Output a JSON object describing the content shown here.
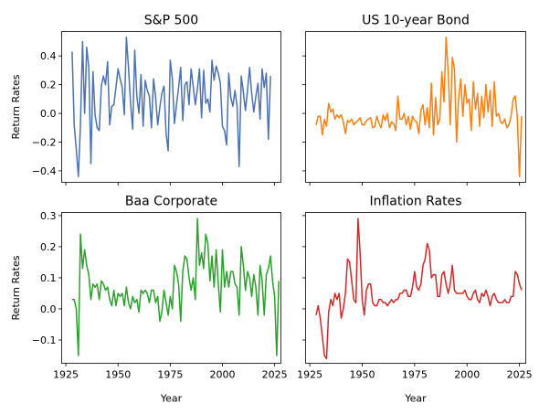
{
  "figure": {
    "x_ticks": [
      "1925",
      "1950",
      "1975",
      "2000",
      "2025"
    ]
  },
  "chart_data": [
    {
      "type": "line",
      "title": "S&P 500",
      "xlabel": "",
      "ylabel": "Return Rates",
      "color": "#4c72b0",
      "xlim": [
        1923,
        2028
      ],
      "ylim": [
        -0.48,
        0.57
      ],
      "yticks": [
        -0.4,
        -0.2,
        0.0,
        0.2,
        0.4
      ],
      "ytick_labels": [
        "−0.4",
        "−0.2",
        "0.0",
        "0.2",
        "0.4"
      ],
      "show_xtick_labels": false,
      "show_ytick_labels": true,
      "x_start": 1928,
      "values": [
        0.43,
        -0.08,
        -0.25,
        -0.44,
        -0.08,
        0.5,
        0.0,
        0.46,
        0.32,
        -0.35,
        0.29,
        -0.01,
        -0.1,
        -0.12,
        0.19,
        0.26,
        0.2,
        0.36,
        -0.08,
        0.05,
        0.06,
        0.18,
        0.31,
        0.24,
        0.18,
        -0.01,
        0.53,
        0.32,
        0.07,
        -0.11,
        0.44,
        0.12,
        0.0,
        0.27,
        -0.09,
        0.23,
        0.16,
        0.12,
        -0.1,
        0.24,
        0.11,
        -0.08,
        0.04,
        0.14,
        0.19,
        -0.14,
        -0.26,
        0.37,
        0.24,
        -0.07,
        0.06,
        0.18,
        0.32,
        -0.05,
        0.2,
        0.22,
        0.06,
        0.31,
        0.19,
        0.06,
        0.17,
        0.31,
        -0.03,
        0.3,
        0.07,
        0.1,
        0.01,
        0.37,
        0.23,
        0.33,
        0.28,
        0.21,
        -0.09,
        -0.12,
        -0.22,
        0.28,
        0.11,
        0.05,
        0.16,
        0.05,
        -0.37,
        0.26,
        0.15,
        0.02,
        0.16,
        0.32,
        0.14,
        0.01,
        0.12,
        0.21,
        -0.04,
        0.31,
        0.18,
        0.28,
        -0.18,
        0.26
      ]
    },
    {
      "type": "line",
      "title": "US 10-year Bond",
      "xlabel": "",
      "ylabel": "",
      "color": "#ff7f0e",
      "xlim": [
        1923,
        2028
      ],
      "ylim": [
        -0.48,
        0.57
      ],
      "yticks": [
        -0.4,
        -0.2,
        0.0,
        0.2,
        0.4
      ],
      "ytick_labels": [
        "",
        "",
        "",
        "",
        ""
      ],
      "show_xtick_labels": false,
      "show_ytick_labels": false,
      "x_start": 1928,
      "values": [
        -0.08,
        -0.02,
        -0.02,
        -0.15,
        -0.04,
        -0.09,
        0.07,
        0.01,
        0.03,
        -0.04,
        -0.01,
        -0.03,
        -0.01,
        -0.06,
        -0.14,
        -0.05,
        -0.06,
        -0.04,
        -0.08,
        -0.06,
        -0.05,
        -0.03,
        -0.08,
        -0.08,
        -0.05,
        -0.04,
        -0.03,
        -0.1,
        -0.09,
        -0.02,
        -0.07,
        -0.1,
        -0.01,
        -0.05,
        0.0,
        -0.1,
        -0.06,
        -0.07,
        -0.12,
        0.12,
        -0.04,
        -0.04,
        0.0,
        -0.08,
        -0.02,
        -0.11,
        -0.02,
        -0.05,
        -0.06,
        -0.14,
        0.02,
        0.06,
        -0.08,
        0.04,
        -0.1,
        0.21,
        -0.15,
        0.11,
        -0.08,
        -0.04,
        0.29,
        0.08,
        0.53,
        0.29,
        -0.08,
        0.39,
        0.31,
        -0.2,
        0.11,
        0.24,
        -0.02,
        0.2,
        0.07,
        0.1,
        -0.12,
        0.22,
        0.03,
        0.14,
        -0.09,
        0.12,
        -0.03,
        0.2,
        0.01,
        0.16,
        -0.09,
        0.22,
        -0.02,
        0.0,
        -0.06,
        -0.07,
        -0.04,
        -0.1,
        -0.08,
        -0.02,
        0.1,
        0.12,
        -0.03,
        -0.44,
        -0.02
      ]
    },
    {
      "type": "line",
      "title": "Baa Corporate",
      "xlabel": "Year",
      "ylabel": "Return Rates",
      "color": "#2ca02c",
      "xlim": [
        1923,
        2028
      ],
      "ylim": [
        -0.175,
        0.31
      ],
      "yticks": [
        -0.1,
        0.0,
        0.1,
        0.2,
        0.3
      ],
      "ytick_labels": [
        "−0.1",
        "0.0",
        "0.1",
        "0.2",
        "0.3"
      ],
      "show_xtick_labels": true,
      "show_ytick_labels": true,
      "x_start": 1928,
      "values": [
        0.03,
        0.03,
        0.0,
        -0.15,
        0.24,
        0.13,
        0.19,
        0.14,
        0.11,
        0.03,
        0.08,
        0.07,
        0.08,
        0.03,
        0.09,
        0.08,
        0.06,
        0.07,
        0.03,
        0.01,
        0.06,
        0.01,
        0.05,
        0.04,
        0.05,
        0.01,
        0.07,
        0.02,
        0.0,
        0.04,
        0.02,
        0.03,
        -0.01,
        0.06,
        0.05,
        0.06,
        0.05,
        0.02,
        0.06,
        0.06,
        0.02,
        0.04,
        -0.04,
        -0.01,
        0.06,
        0.02,
        -0.02,
        0.04,
        0.0,
        0.14,
        0.12,
        0.08,
        -0.04,
        0.12,
        0.17,
        0.16,
        0.1,
        0.06,
        0.1,
        0.03,
        0.29,
        0.14,
        0.18,
        0.13,
        0.24,
        0.21,
        0.09,
        0.17,
        0.07,
        0.19,
        0.08,
        -0.01,
        0.19,
        0.07,
        0.12,
        0.07,
        0.12,
        0.12,
        0.08,
        0.07,
        -0.02,
        0.2,
        0.14,
        0.06,
        0.12,
        0.1,
        0.04,
        0.11,
        0.07,
        -0.02,
        0.14,
        0.09,
        -0.02,
        0.11,
        0.13,
        0.17,
        0.09,
        0.04,
        -0.15,
        0.09
      ]
    },
    {
      "type": "line",
      "title": "Inflation Rates",
      "xlabel": "Year",
      "ylabel": "",
      "color": "#d62728",
      "xlim": [
        1923,
        2028
      ],
      "ylim": [
        -0.175,
        0.31
      ],
      "yticks": [
        -0.1,
        0.0,
        0.1,
        0.2,
        0.3
      ],
      "ytick_labels": [
        "",
        "",
        "",
        "",
        ""
      ],
      "show_xtick_labels": true,
      "show_ytick_labels": false,
      "x_start": 1928,
      "values": [
        -0.02,
        0.01,
        -0.03,
        -0.09,
        -0.15,
        -0.16,
        -0.01,
        0.03,
        0.01,
        0.05,
        0.03,
        0.05,
        -0.03,
        0.0,
        0.05,
        0.16,
        0.15,
        0.09,
        0.03,
        0.02,
        0.29,
        0.18,
        0.03,
        -0.02,
        0.06,
        0.08,
        0.08,
        0.02,
        0.01,
        0.01,
        0.03,
        0.03,
        0.02,
        0.02,
        0.01,
        0.02,
        0.03,
        0.02,
        0.03,
        0.03,
        0.05,
        0.05,
        0.06,
        0.06,
        0.04,
        0.04,
        0.07,
        0.12,
        0.07,
        0.06,
        0.08,
        0.14,
        0.16,
        0.21,
        0.19,
        0.1,
        0.11,
        0.11,
        0.04,
        0.04,
        0.11,
        0.12,
        0.08,
        0.05,
        0.08,
        0.14,
        0.06,
        0.05,
        0.05,
        0.05,
        0.05,
        0.06,
        0.04,
        0.03,
        0.03,
        0.05,
        0.06,
        0.03,
        0.02,
        0.05,
        0.04,
        0.06,
        0.04,
        0.01,
        0.04,
        0.05,
        0.03,
        0.02,
        0.02,
        0.02,
        0.03,
        0.02,
        0.02,
        0.04,
        0.04,
        0.12,
        0.11,
        0.08,
        0.06
      ]
    }
  ]
}
